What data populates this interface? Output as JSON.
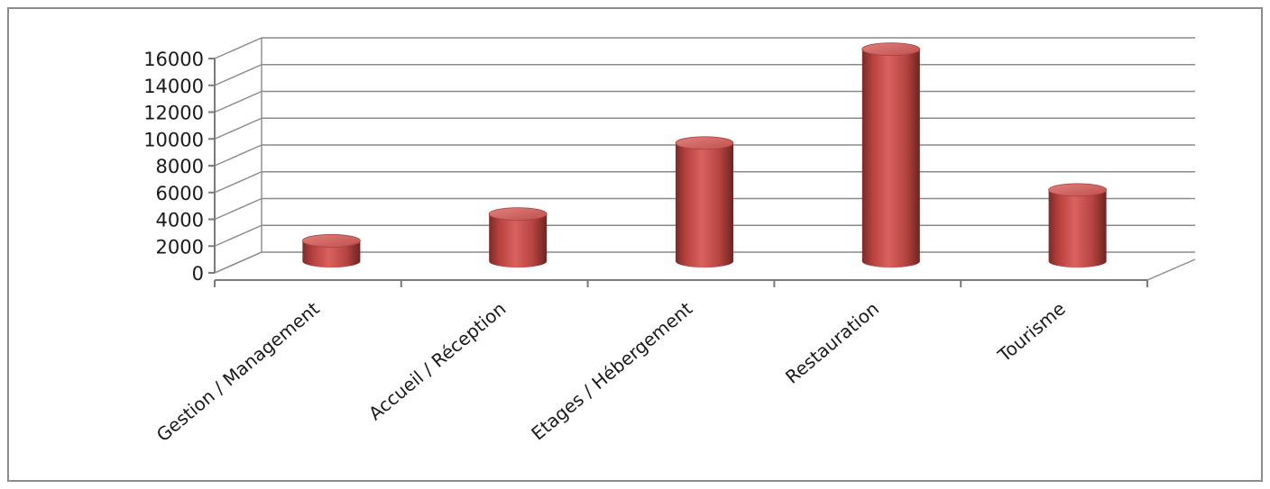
{
  "chart_data": {
    "type": "bar",
    "style": "3d-cylinder",
    "categories": [
      "Gestion / Management",
      "Accueil / Réception",
      "Etages / Hébergement",
      "Restauration",
      "Tourisme"
    ],
    "values": [
      1700,
      3700,
      9000,
      16000,
      5500
    ],
    "ylim": [
      0,
      16000
    ],
    "yticks": [
      "0",
      "2000",
      "4000",
      "6000",
      "8000",
      "10000",
      "12000",
      "14000",
      "16000"
    ],
    "grid": true,
    "legend": "none",
    "bar_color": "#c0504d"
  }
}
